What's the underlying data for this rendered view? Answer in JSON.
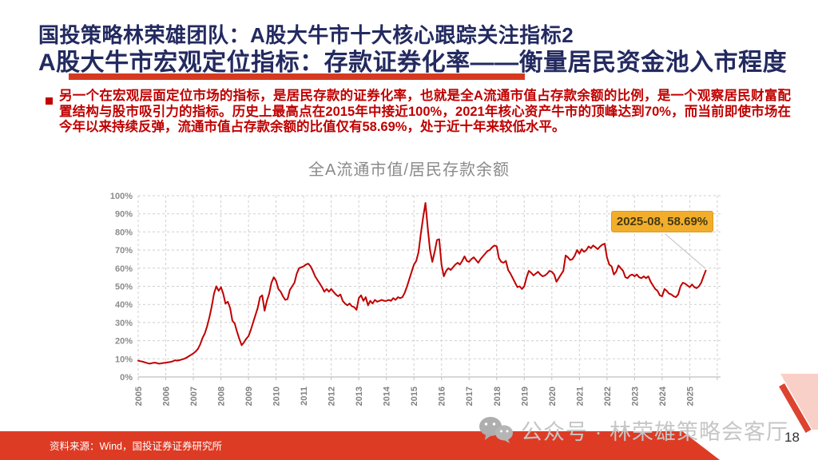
{
  "slide": {
    "title_line1": "国投策略林荣雄团队：A股大牛市十大核心跟踪关注指标2",
    "title_line2": "A股大牛市宏观定位指标：存款证券化率——衡量居民资金池入市程度",
    "bullet_text": "另一个在宏观层面定位市场的指标，是居民存款的证券化率，也就是全A流通市值占存款余额的比例，是一个观察居民财富配置结构与股市吸引力的指标。历史上最高点在2015年中接近100%，2021年核心资产牛市的顶峰达到70%，而当前即使市场在今年以来持续反弹，流通市值占存款余额的比值仅有58.69%，处于近十年来较低水平。",
    "footer_source": "资料来源：Wind，国投证券证券研究所",
    "watermark": "公众号 · 林荣雄策略会客厅",
    "page_number": "18",
    "colors": {
      "title_navy": "#232A60",
      "body_red": "#C00000",
      "underline_red": "#D53A21",
      "banner_red": "#DE3B25",
      "line_red": "#C00000",
      "annotation_bg": "#F2AE2B",
      "annotation_text": "#463A12",
      "axis_label_gray": "#8C8C8C",
      "watermark_gray": "#C6C6C6"
    }
  },
  "chart_data": {
    "type": "line",
    "title": "全A流通市值/居民存款余额",
    "xlabel": "",
    "ylabel": "",
    "ylim": [
      0,
      100
    ],
    "grid": "dashed horizontal and vertical gridlines",
    "legend": "none",
    "x_tick_labels": [
      "2005",
      "2006",
      "2007",
      "2008",
      "2009",
      "2010",
      "2011",
      "2012",
      "2013",
      "2014",
      "2015",
      "2016",
      "2017",
      "2018",
      "2019",
      "2020",
      "2021",
      "2022",
      "2023",
      "2024",
      "2025"
    ],
    "y_tick_labels": [
      "0%",
      "10%",
      "20%",
      "30%",
      "40%",
      "50%",
      "60%",
      "70%",
      "80%",
      "90%",
      "100%"
    ],
    "x_monthly_start": "2005-01",
    "x_monthly_end": "2025-08",
    "annotation": {
      "label": "2025-08, 58.69%",
      "x": "2025-08",
      "y": 58.69
    },
    "series": [
      {
        "name": "全A流通市值/居民存款余额",
        "unit": "%",
        "color": "#C00000",
        "values": [
          9.0,
          8.7,
          8.4,
          8.0,
          7.6,
          7.3,
          7.6,
          7.9,
          7.7,
          7.3,
          7.5,
          7.7,
          7.9,
          8.1,
          8.3,
          8.6,
          9.2,
          9.0,
          9.3,
          9.6,
          10.0,
          10.6,
          11.4,
          12.2,
          13.0,
          14.0,
          15.5,
          18.0,
          21.5,
          24.0,
          28.0,
          33.0,
          39.0,
          46.0,
          50.0,
          47.5,
          49.5,
          46.0,
          40.5,
          41.5,
          38.0,
          31.0,
          29.5,
          25.0,
          21.0,
          17.5,
          19.0,
          21.0,
          22.5,
          26.0,
          30.0,
          34.0,
          38.0,
          44.0,
          45.0,
          36.5,
          42.0,
          46.0,
          52.0,
          55.0,
          53.0,
          48.5,
          47.0,
          44.5,
          42.5,
          43.0,
          48.0,
          50.0,
          52.0,
          57.0,
          60.0,
          60.5,
          61.0,
          62.0,
          62.5,
          61.0,
          58.5,
          55.5,
          53.5,
          51.5,
          49.5,
          47.0,
          48.5,
          47.0,
          48.5,
          47.0,
          45.5,
          44.5,
          45.5,
          42.0,
          40.5,
          39.5,
          40.5,
          39.0,
          38.5,
          37.0,
          43.5,
          45.0,
          42.0,
          44.0,
          39.5,
          42.0,
          40.5,
          42.5,
          41.5,
          42.0,
          42.5,
          42.0,
          42.0,
          42.5,
          42.0,
          43.5,
          42.5,
          44.0,
          43.5,
          44.0,
          46.5,
          50.0,
          54.0,
          58.0,
          62.0,
          64.0,
          69.0,
          79.0,
          88.0,
          96.0,
          82.0,
          70.0,
          63.5,
          69.0,
          75.5,
          76.0,
          62.0,
          55.5,
          58.5,
          60.0,
          59.0,
          60.5,
          62.0,
          63.0,
          62.0,
          64.0,
          66.5,
          64.0,
          63.5,
          65.0,
          66.0,
          64.5,
          63.0,
          65.0,
          66.5,
          68.0,
          69.5,
          70.0,
          71.5,
          72.5,
          72.0,
          65.5,
          63.5,
          63.0,
          64.0,
          59.0,
          57.0,
          54.5,
          52.0,
          49.5,
          50.0,
          48.5,
          50.0,
          55.0,
          58.5,
          57.5,
          56.0,
          57.0,
          58.0,
          56.5,
          55.5,
          56.0,
          57.0,
          58.5,
          58.0,
          56.5,
          52.5,
          54.5,
          56.5,
          58.5,
          67.0,
          66.0,
          64.5,
          65.0,
          67.0,
          70.0,
          68.0,
          70.5,
          69.0,
          70.0,
          72.0,
          71.0,
          72.5,
          71.5,
          70.5,
          72.0,
          73.0,
          73.5,
          66.0,
          62.0,
          61.0,
          56.5,
          58.0,
          61.5,
          60.0,
          58.5,
          55.0,
          54.5,
          56.0,
          56.5,
          55.5,
          56.5,
          55.0,
          54.5,
          55.5,
          54.5,
          55.5,
          52.5,
          50.5,
          48.5,
          47.5,
          45.0,
          44.5,
          48.5,
          47.5,
          46.0,
          45.5,
          44.5,
          44.0,
          45.5,
          50.0,
          52.0,
          51.5,
          50.5,
          49.5,
          51.0,
          49.5,
          49.0,
          50.0,
          52.0,
          55.5,
          58.69
        ]
      }
    ]
  }
}
